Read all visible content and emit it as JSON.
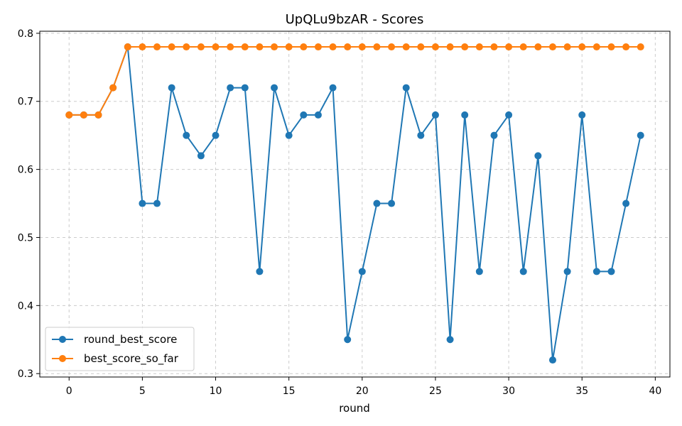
{
  "chart_data": {
    "type": "line",
    "title": "UpQLu9bzAR - Scores",
    "xlabel": "round",
    "ylabel": "",
    "xlim": [
      -2,
      41
    ],
    "ylim": [
      0.295,
      0.803
    ],
    "xticks": [
      0,
      5,
      10,
      15,
      20,
      25,
      30,
      35,
      40
    ],
    "yticks": [
      0.3,
      0.4,
      0.5,
      0.6,
      0.7,
      0.8
    ],
    "grid": true,
    "legend_position": "lower-left",
    "x": [
      0,
      1,
      2,
      3,
      4,
      5,
      6,
      7,
      8,
      9,
      10,
      11,
      12,
      13,
      14,
      15,
      16,
      17,
      18,
      19,
      20,
      21,
      22,
      23,
      24,
      25,
      26,
      27,
      28,
      29,
      30,
      31,
      32,
      33,
      34,
      35,
      36,
      37,
      38,
      39
    ],
    "series": [
      {
        "name": "round_best_score",
        "color": "#1f77b4",
        "values": [
          0.68,
          0.68,
          0.68,
          0.72,
          0.78,
          0.55,
          0.55,
          0.72,
          0.65,
          0.62,
          0.65,
          0.72,
          0.72,
          0.45,
          0.72,
          0.65,
          0.68,
          0.68,
          0.72,
          0.35,
          0.45,
          0.55,
          0.55,
          0.72,
          0.65,
          0.68,
          0.35,
          0.68,
          0.45,
          0.65,
          0.68,
          0.45,
          0.62,
          0.32,
          0.45,
          0.68,
          0.45,
          0.45,
          0.55,
          0.65
        ]
      },
      {
        "name": "best_score_so_far",
        "color": "#ff7f0e",
        "values": [
          0.68,
          0.68,
          0.68,
          0.72,
          0.78,
          0.78,
          0.78,
          0.78,
          0.78,
          0.78,
          0.78,
          0.78,
          0.78,
          0.78,
          0.78,
          0.78,
          0.78,
          0.78,
          0.78,
          0.78,
          0.78,
          0.78,
          0.78,
          0.78,
          0.78,
          0.78,
          0.78,
          0.78,
          0.78,
          0.78,
          0.78,
          0.78,
          0.78,
          0.78,
          0.78,
          0.78,
          0.78,
          0.78,
          0.78,
          0.78
        ]
      }
    ]
  }
}
